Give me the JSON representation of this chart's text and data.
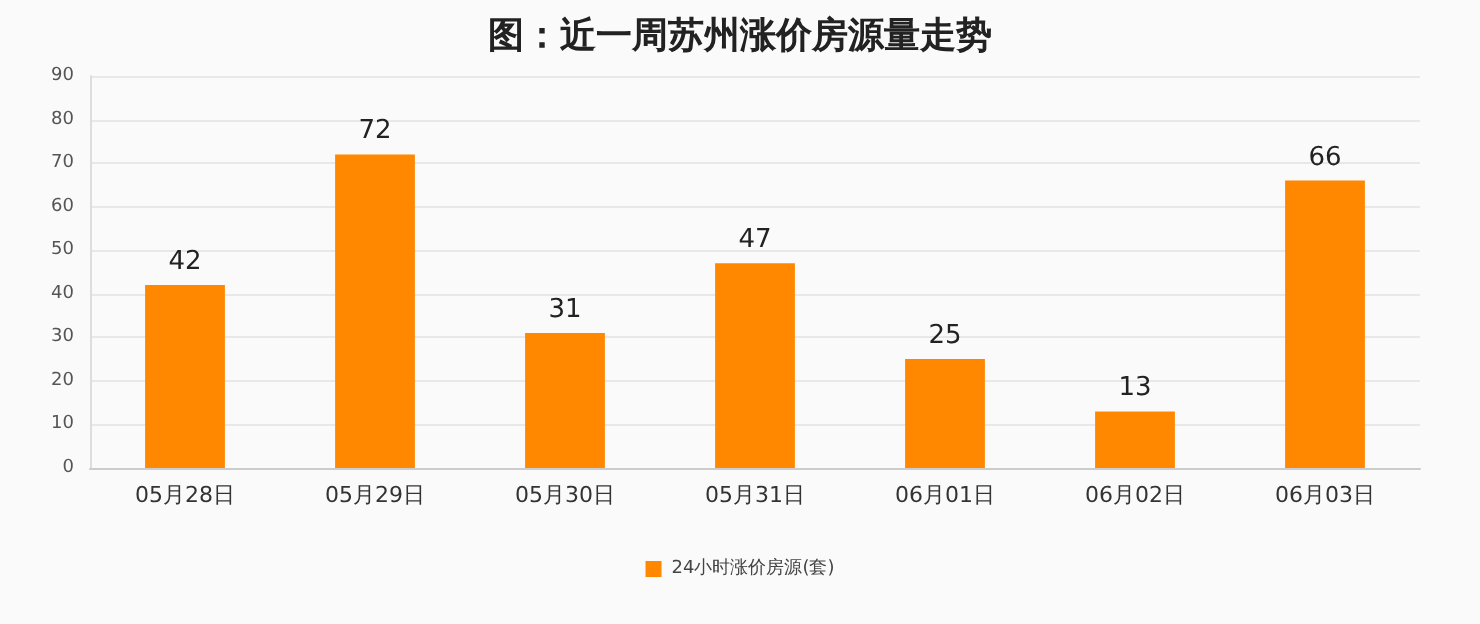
{
  "chart_data": {
    "type": "bar",
    "title": "图：近一周苏州涨价房源量走势",
    "categories": [
      "05月28日",
      "05月29日",
      "05月30日",
      "05月31日",
      "06月01日",
      "06月02日",
      "06月03日"
    ],
    "series": [
      {
        "name": "24小时涨价房源(套)",
        "color": "#ff8800",
        "values": [
          42,
          72,
          31,
          47,
          25,
          13,
          66
        ]
      }
    ],
    "ylim": [
      0,
      90
    ],
    "yticks": [
      0,
      10,
      20,
      30,
      40,
      50,
      60,
      70,
      80,
      90
    ],
    "grid": "y",
    "legend": "bottom",
    "data_labels": true
  }
}
